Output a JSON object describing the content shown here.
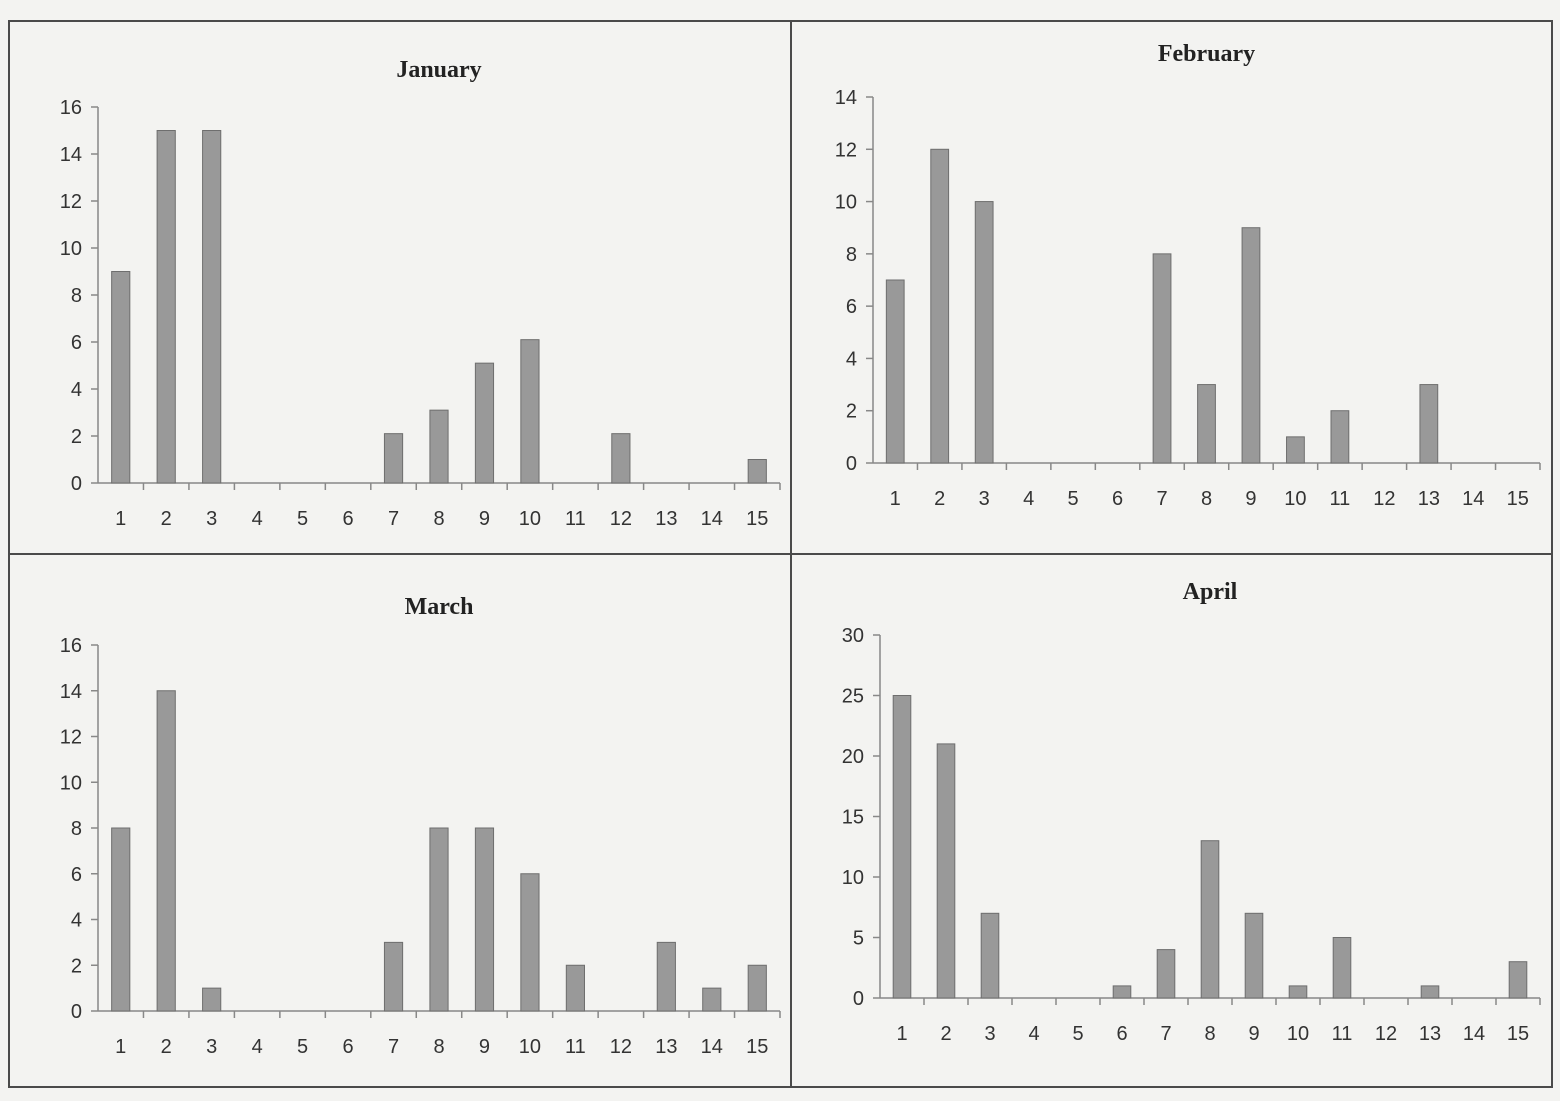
{
  "chart_data": [
    {
      "type": "bar",
      "title": "January",
      "categories": [
        "1",
        "2",
        "3",
        "4",
        "5",
        "6",
        "7",
        "8",
        "9",
        "10",
        "11",
        "12",
        "13",
        "14",
        "15"
      ],
      "values": [
        9,
        15,
        15,
        0,
        0,
        0,
        2.1,
        3.1,
        5.1,
        6.1,
        0,
        2.1,
        0,
        0,
        1
      ],
      "ylim": [
        0,
        16
      ],
      "yticks": [
        "0",
        "2",
        "4",
        "6",
        "8",
        "10",
        "12",
        "14",
        "16"
      ],
      "xlabel": "",
      "ylabel": "",
      "bar_color": "#999999",
      "grid": false
    },
    {
      "type": "bar",
      "title": "February",
      "categories": [
        "1",
        "2",
        "3",
        "4",
        "5",
        "6",
        "7",
        "8",
        "9",
        "10",
        "11",
        "12",
        "13",
        "14",
        "15"
      ],
      "values": [
        7,
        12,
        10,
        0,
        0,
        0,
        8,
        3,
        9,
        1,
        2,
        0,
        3,
        0,
        0
      ],
      "ylim": [
        0,
        14
      ],
      "yticks": [
        "0",
        "2",
        "4",
        "6",
        "8",
        "10",
        "12",
        "14"
      ],
      "xlabel": "",
      "ylabel": "",
      "bar_color": "#999999",
      "grid": false
    },
    {
      "type": "bar",
      "title": "March",
      "categories": [
        "1",
        "2",
        "3",
        "4",
        "5",
        "6",
        "7",
        "8",
        "9",
        "10",
        "11",
        "12",
        "13",
        "14",
        "15"
      ],
      "values": [
        8,
        14,
        1,
        0,
        0,
        0,
        3,
        8,
        8,
        6,
        2,
        0,
        3,
        1,
        2
      ],
      "ylim": [
        0,
        16
      ],
      "yticks": [
        "0",
        "2",
        "4",
        "6",
        "8",
        "10",
        "12",
        "14",
        "16"
      ],
      "xlabel": "",
      "ylabel": "",
      "bar_color": "#999999",
      "grid": false
    },
    {
      "type": "bar",
      "title": "April",
      "categories": [
        "1",
        "2",
        "3",
        "4",
        "5",
        "6",
        "7",
        "8",
        "9",
        "10",
        "11",
        "12",
        "13",
        "14",
        "15"
      ],
      "values": [
        25,
        21,
        7,
        0,
        0,
        1,
        4,
        13,
        7,
        1,
        5,
        0,
        1,
        0,
        3
      ],
      "ylim": [
        0,
        30
      ],
      "yticks": [
        "0",
        "5",
        "10",
        "15",
        "20",
        "25",
        "30"
      ],
      "xlabel": "",
      "ylabel": "",
      "bar_color": "#999999",
      "grid": false
    }
  ]
}
